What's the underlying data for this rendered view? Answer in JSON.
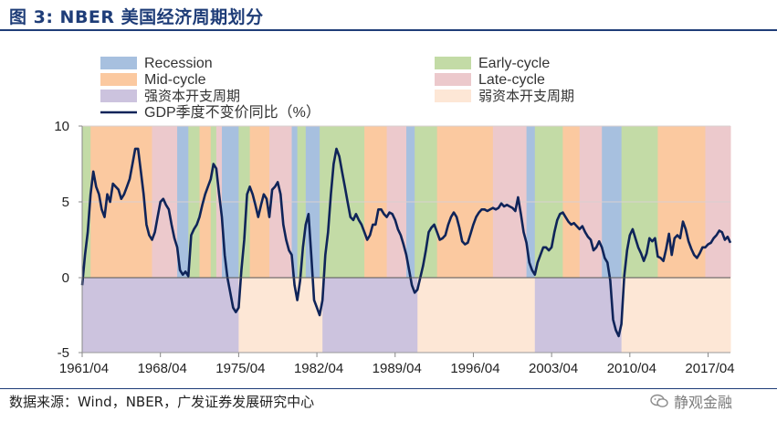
{
  "title": "图 3:    NBER 美国经济周期划分",
  "source": "数据来源：Wind，NBER，广发证券发展研究中心",
  "watermark": "静观金融",
  "colors": {
    "recession": "#a7c0df",
    "early": "#c3dba6",
    "mid": "#fbc9a0",
    "late": "#ecc9cc",
    "strong": "#ccc3de",
    "weak": "#fde7d6",
    "line": "#0f2459"
  },
  "chart_data": {
    "type": "line",
    "title": "NBER 美国经济周期划分",
    "xlabel": "",
    "ylabel": "",
    "ylim": [
      -5,
      10
    ],
    "yticks": [
      -5,
      0,
      5,
      10
    ],
    "xlim": [
      1961.25,
      2019.25
    ],
    "x_tick_labels": [
      "1961/04",
      "1968/04",
      "1975/04",
      "1982/04",
      "1989/04",
      "1996/04",
      "2003/04",
      "2010/04",
      "2017/04"
    ],
    "x_tick_values": [
      1961.25,
      1968.25,
      1975.25,
      1982.25,
      1989.25,
      1996.25,
      2003.25,
      2010.25,
      2017.25
    ],
    "legend": [
      {
        "key": "recession",
        "label": "Recession"
      },
      {
        "key": "early",
        "label": "Early-cycle"
      },
      {
        "key": "mid",
        "label": "Mid-cycle"
      },
      {
        "key": "late",
        "label": "Late-cycle"
      },
      {
        "key": "strong",
        "label": "强资本开支周期"
      },
      {
        "key": "weak",
        "label": "弱资本开支周期"
      },
      {
        "key": "line",
        "label": "GDP季度不变价同比（%）"
      }
    ],
    "phases": [
      {
        "phase": "early",
        "start": 1961.25,
        "end": 1962.0
      },
      {
        "phase": "mid",
        "start": 1962.0,
        "end": 1967.5
      },
      {
        "phase": "late",
        "start": 1967.5,
        "end": 1969.75
      },
      {
        "phase": "recession",
        "start": 1969.75,
        "end": 1970.75
      },
      {
        "phase": "early",
        "start": 1970.75,
        "end": 1971.75
      },
      {
        "phase": "mid",
        "start": 1971.75,
        "end": 1972.75
      },
      {
        "phase": "early",
        "start": 1972.75,
        "end": 1973.25
      },
      {
        "phase": "late",
        "start": 1973.25,
        "end": 1973.75
      },
      {
        "phase": "recession",
        "start": 1973.75,
        "end": 1975.25
      },
      {
        "phase": "early",
        "start": 1975.25,
        "end": 1976.25
      },
      {
        "phase": "mid",
        "start": 1976.25,
        "end": 1978.0
      },
      {
        "phase": "late",
        "start": 1978.0,
        "end": 1980.0
      },
      {
        "phase": "recession",
        "start": 1980.0,
        "end": 1980.5
      },
      {
        "phase": "early",
        "start": 1980.5,
        "end": 1981.25
      },
      {
        "phase": "recession",
        "start": 1981.25,
        "end": 1982.5
      },
      {
        "phase": "early",
        "start": 1982.5,
        "end": 1986.5
      },
      {
        "phase": "mid",
        "start": 1986.5,
        "end": 1988.5
      },
      {
        "phase": "late",
        "start": 1988.5,
        "end": 1990.25
      },
      {
        "phase": "recession",
        "start": 1990.25,
        "end": 1991.0
      },
      {
        "phase": "early",
        "start": 1991.0,
        "end": 1993.0
      },
      {
        "phase": "mid",
        "start": 1993.0,
        "end": 1998.0
      },
      {
        "phase": "late",
        "start": 1998.0,
        "end": 2001.0
      },
      {
        "phase": "recession",
        "start": 2001.0,
        "end": 2001.75
      },
      {
        "phase": "early",
        "start": 2001.75,
        "end": 2004.25
      },
      {
        "phase": "mid",
        "start": 2004.25,
        "end": 2005.75
      },
      {
        "phase": "late",
        "start": 2005.75,
        "end": 2007.75
      },
      {
        "phase": "recession",
        "start": 2007.75,
        "end": 2009.5
      },
      {
        "phase": "early",
        "start": 2009.5,
        "end": 2012.75
      },
      {
        "phase": "mid",
        "start": 2012.75,
        "end": 2017.0
      },
      {
        "phase": "late",
        "start": 2017.0,
        "end": 2019.25
      }
    ],
    "capex": [
      {
        "phase": "strong",
        "start": 1961.25,
        "end": 1975.25
      },
      {
        "phase": "weak",
        "start": 1975.25,
        "end": 1982.75
      },
      {
        "phase": "strong",
        "start": 1982.75,
        "end": 1991.25
      },
      {
        "phase": "weak",
        "start": 1991.25,
        "end": 2001.75
      },
      {
        "phase": "strong",
        "start": 2001.75,
        "end": 2009.5
      },
      {
        "phase": "weak",
        "start": 2009.5,
        "end": 2019.25
      }
    ],
    "series": [
      {
        "name": "GDP季度不变价同比（%）",
        "points": [
          [
            1961.25,
            -0.5
          ],
          [
            1961.5,
            1.5
          ],
          [
            1961.75,
            3.0
          ],
          [
            1962.0,
            5.5
          ],
          [
            1962.25,
            7.0
          ],
          [
            1962.5,
            6.0
          ],
          [
            1962.75,
            5.5
          ],
          [
            1963.0,
            4.5
          ],
          [
            1963.25,
            4.0
          ],
          [
            1963.5,
            5.5
          ],
          [
            1963.75,
            5.0
          ],
          [
            1964.0,
            6.2
          ],
          [
            1964.25,
            6.0
          ],
          [
            1964.5,
            5.8
          ],
          [
            1964.75,
            5.2
          ],
          [
            1965.0,
            5.5
          ],
          [
            1965.25,
            6.0
          ],
          [
            1965.5,
            6.5
          ],
          [
            1965.75,
            7.5
          ],
          [
            1966.0,
            8.5
          ],
          [
            1966.25,
            8.5
          ],
          [
            1966.5,
            7.0
          ],
          [
            1966.75,
            5.5
          ],
          [
            1967.0,
            3.5
          ],
          [
            1967.25,
            2.8
          ],
          [
            1967.5,
            2.5
          ],
          [
            1967.75,
            3.0
          ],
          [
            1968.0,
            4.0
          ],
          [
            1968.25,
            5.0
          ],
          [
            1968.5,
            5.2
          ],
          [
            1968.75,
            4.8
          ],
          [
            1969.0,
            4.5
          ],
          [
            1969.25,
            3.5
          ],
          [
            1969.5,
            2.6
          ],
          [
            1969.75,
            2.0
          ],
          [
            1970.0,
            0.5
          ],
          [
            1970.25,
            0.2
          ],
          [
            1970.5,
            0.4
          ],
          [
            1970.75,
            0.1
          ],
          [
            1971.0,
            2.8
          ],
          [
            1971.25,
            3.2
          ],
          [
            1971.5,
            3.5
          ],
          [
            1971.75,
            4.0
          ],
          [
            1972.0,
            4.8
          ],
          [
            1972.25,
            5.5
          ],
          [
            1972.5,
            6.0
          ],
          [
            1972.75,
            6.5
          ],
          [
            1973.0,
            7.5
          ],
          [
            1973.25,
            7.2
          ],
          [
            1973.5,
            5.5
          ],
          [
            1973.75,
            4.0
          ],
          [
            1974.0,
            1.5
          ],
          [
            1974.25,
            0.0
          ],
          [
            1974.5,
            -1.0
          ],
          [
            1974.75,
            -2.0
          ],
          [
            1975.0,
            -2.3
          ],
          [
            1975.25,
            -2.0
          ],
          [
            1975.5,
            0.5
          ],
          [
            1975.75,
            2.5
          ],
          [
            1976.0,
            5.5
          ],
          [
            1976.25,
            6.0
          ],
          [
            1976.5,
            5.5
          ],
          [
            1976.75,
            4.8
          ],
          [
            1977.0,
            4.0
          ],
          [
            1977.25,
            4.8
          ],
          [
            1977.5,
            5.5
          ],
          [
            1977.75,
            5.2
          ],
          [
            1978.0,
            4.0
          ],
          [
            1978.25,
            5.8
          ],
          [
            1978.5,
            6.0
          ],
          [
            1978.75,
            6.3
          ],
          [
            1979.0,
            5.5
          ],
          [
            1979.25,
            3.5
          ],
          [
            1979.5,
            2.5
          ],
          [
            1979.75,
            1.8
          ],
          [
            1980.0,
            1.5
          ],
          [
            1980.25,
            -0.5
          ],
          [
            1980.5,
            -1.5
          ],
          [
            1980.75,
            -0.2
          ],
          [
            1981.0,
            2.0
          ],
          [
            1981.25,
            3.5
          ],
          [
            1981.5,
            4.2
          ],
          [
            1981.75,
            1.5
          ],
          [
            1982.0,
            -1.5
          ],
          [
            1982.25,
            -2.0
          ],
          [
            1982.5,
            -2.5
          ],
          [
            1982.75,
            -1.5
          ],
          [
            1983.0,
            1.5
          ],
          [
            1983.25,
            3.0
          ],
          [
            1983.5,
            5.5
          ],
          [
            1983.75,
            7.5
          ],
          [
            1984.0,
            8.5
          ],
          [
            1984.25,
            8.0
          ],
          [
            1984.5,
            7.0
          ],
          [
            1984.75,
            6.0
          ],
          [
            1985.0,
            5.0
          ],
          [
            1985.25,
            4.0
          ],
          [
            1985.5,
            3.8
          ],
          [
            1985.75,
            4.2
          ],
          [
            1986.0,
            3.8
          ],
          [
            1986.25,
            3.5
          ],
          [
            1986.5,
            3.0
          ],
          [
            1986.75,
            2.5
          ],
          [
            1987.0,
            2.8
          ],
          [
            1987.25,
            3.5
          ],
          [
            1987.5,
            3.5
          ],
          [
            1987.75,
            4.5
          ],
          [
            1988.0,
            4.5
          ],
          [
            1988.25,
            4.2
          ],
          [
            1988.5,
            4.0
          ],
          [
            1988.75,
            4.3
          ],
          [
            1989.0,
            4.2
          ],
          [
            1989.25,
            3.8
          ],
          [
            1989.5,
            3.2
          ],
          [
            1989.75,
            2.8
          ],
          [
            1990.0,
            2.2
          ],
          [
            1990.25,
            1.5
          ],
          [
            1990.5,
            0.5
          ],
          [
            1990.75,
            -0.5
          ],
          [
            1991.0,
            -1.0
          ],
          [
            1991.25,
            -0.8
          ],
          [
            1991.5,
            0.0
          ],
          [
            1991.75,
            0.8
          ],
          [
            1992.0,
            1.8
          ],
          [
            1992.25,
            3.0
          ],
          [
            1992.5,
            3.3
          ],
          [
            1992.75,
            3.5
          ],
          [
            1993.0,
            3.0
          ],
          [
            1993.25,
            2.5
          ],
          [
            1993.5,
            2.6
          ],
          [
            1993.75,
            2.8
          ],
          [
            1994.0,
            3.5
          ],
          [
            1994.25,
            4.0
          ],
          [
            1994.5,
            4.3
          ],
          [
            1994.75,
            4.0
          ],
          [
            1995.0,
            3.3
          ],
          [
            1995.25,
            2.4
          ],
          [
            1995.5,
            2.2
          ],
          [
            1995.75,
            2.3
          ],
          [
            1996.0,
            2.9
          ],
          [
            1996.25,
            3.5
          ],
          [
            1996.5,
            4.0
          ],
          [
            1996.75,
            4.3
          ],
          [
            1997.0,
            4.5
          ],
          [
            1997.25,
            4.5
          ],
          [
            1997.5,
            4.4
          ],
          [
            1997.75,
            4.5
          ],
          [
            1998.0,
            4.6
          ],
          [
            1998.25,
            4.5
          ],
          [
            1998.5,
            4.6
          ],
          [
            1998.75,
            4.9
          ],
          [
            1999.0,
            4.7
          ],
          [
            1999.25,
            4.8
          ],
          [
            1999.5,
            4.7
          ],
          [
            1999.75,
            4.6
          ],
          [
            2000.0,
            4.4
          ],
          [
            2000.25,
            5.3
          ],
          [
            2000.5,
            4.2
          ],
          [
            2000.75,
            3.0
          ],
          [
            2001.0,
            2.3
          ],
          [
            2001.25,
            1.0
          ],
          [
            2001.5,
            0.5
          ],
          [
            2001.75,
            0.2
          ],
          [
            2002.0,
            1.0
          ],
          [
            2002.25,
            1.5
          ],
          [
            2002.5,
            2.0
          ],
          [
            2002.75,
            2.0
          ],
          [
            2003.0,
            1.8
          ],
          [
            2003.25,
            2.0
          ],
          [
            2003.5,
            3.0
          ],
          [
            2003.75,
            3.8
          ],
          [
            2004.0,
            4.2
          ],
          [
            2004.25,
            4.3
          ],
          [
            2004.5,
            4.0
          ],
          [
            2004.75,
            3.7
          ],
          [
            2005.0,
            3.5
          ],
          [
            2005.25,
            3.6
          ],
          [
            2005.5,
            3.4
          ],
          [
            2005.75,
            3.2
          ],
          [
            2006.0,
            3.4
          ],
          [
            2006.25,
            3.0
          ],
          [
            2006.5,
            2.7
          ],
          [
            2006.75,
            2.5
          ],
          [
            2007.0,
            1.8
          ],
          [
            2007.25,
            2.0
          ],
          [
            2007.5,
            2.4
          ],
          [
            2007.75,
            2.0
          ],
          [
            2008.0,
            1.3
          ],
          [
            2008.25,
            1.0
          ],
          [
            2008.5,
            -0.2
          ],
          [
            2008.75,
            -2.8
          ],
          [
            2009.0,
            -3.5
          ],
          [
            2009.25,
            -3.9
          ],
          [
            2009.5,
            -3.1
          ],
          [
            2009.75,
            0.1
          ],
          [
            2010.0,
            1.8
          ],
          [
            2010.25,
            2.8
          ],
          [
            2010.5,
            3.2
          ],
          [
            2010.75,
            2.6
          ],
          [
            2011.0,
            2.0
          ],
          [
            2011.25,
            1.6
          ],
          [
            2011.5,
            1.1
          ],
          [
            2011.75,
            1.6
          ],
          [
            2012.0,
            2.6
          ],
          [
            2012.25,
            2.4
          ],
          [
            2012.5,
            2.6
          ],
          [
            2012.75,
            1.4
          ],
          [
            2013.0,
            1.3
          ],
          [
            2013.25,
            1.1
          ],
          [
            2013.5,
            1.9
          ],
          [
            2013.75,
            2.9
          ],
          [
            2014.0,
            1.5
          ],
          [
            2014.25,
            2.6
          ],
          [
            2014.5,
            2.8
          ],
          [
            2014.75,
            2.6
          ],
          [
            2015.0,
            3.7
          ],
          [
            2015.25,
            3.2
          ],
          [
            2015.5,
            2.4
          ],
          [
            2015.75,
            1.9
          ],
          [
            2016.0,
            1.5
          ],
          [
            2016.25,
            1.3
          ],
          [
            2016.5,
            1.6
          ],
          [
            2016.75,
            2.0
          ],
          [
            2017.0,
            2.0
          ],
          [
            2017.25,
            2.2
          ],
          [
            2017.5,
            2.3
          ],
          [
            2017.75,
            2.6
          ],
          [
            2018.0,
            2.8
          ],
          [
            2018.25,
            3.1
          ],
          [
            2018.5,
            3.0
          ],
          [
            2018.75,
            2.5
          ],
          [
            2019.0,
            2.7
          ],
          [
            2019.25,
            2.3
          ]
        ]
      }
    ]
  }
}
